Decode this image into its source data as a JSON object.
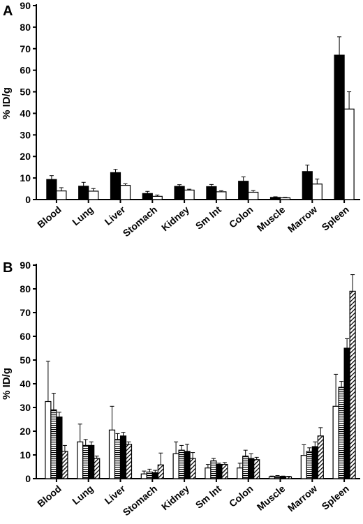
{
  "chart_data": [
    {
      "type": "bar",
      "panel_label": "A",
      "ylabel": "% ID/g",
      "ylim": [
        0,
        90
      ],
      "yticks": [
        0,
        10,
        20,
        30,
        40,
        50,
        60,
        70,
        80,
        90
      ],
      "categories": [
        "Blood",
        "Lung",
        "Liver",
        "Stomach",
        "Kidney",
        "Sm Int",
        "Colon",
        "Muscle",
        "Marrow",
        "Spleen"
      ],
      "series": [
        {
          "fill": "solid-black",
          "values": [
            9.3,
            6.2,
            12.5,
            2.8,
            6.1,
            6.0,
            8.5,
            1.0,
            13.0,
            67.0
          ],
          "errors": [
            1.8,
            1.8,
            1.5,
            1.0,
            0.8,
            1.0,
            2.0,
            0.3,
            3.0,
            8.5
          ]
        },
        {
          "fill": "white",
          "values": [
            4.0,
            3.9,
            6.6,
            1.5,
            4.4,
            3.6,
            3.4,
            0.8,
            7.2,
            42.0
          ],
          "errors": [
            1.5,
            1.2,
            0.7,
            0.6,
            0.4,
            0.5,
            0.8,
            0.2,
            2.3,
            8.0
          ]
        }
      ]
    },
    {
      "type": "bar",
      "panel_label": "B",
      "ylabel": "% ID/g",
      "ylim": [
        0,
        90
      ],
      "yticks": [
        0,
        10,
        20,
        30,
        40,
        50,
        60,
        70,
        80,
        90
      ],
      "categories": [
        "Blood",
        "Lung",
        "Liver",
        "Stomach",
        "Kidney",
        "Sm Int",
        "Colon",
        "Muscle",
        "Marrow",
        "Spleen"
      ],
      "series": [
        {
          "fill": "white",
          "values": [
            32.5,
            15.5,
            20.5,
            2.0,
            10.5,
            4.5,
            4.5,
            0.8,
            9.8,
            30.5
          ],
          "errors": [
            17.0,
            7.5,
            10.0,
            1.2,
            5.0,
            1.5,
            2.0,
            0.3,
            4.5,
            13.5
          ]
        },
        {
          "fill": "horizontal-stripes",
          "values": [
            29.0,
            14.0,
            16.5,
            2.8,
            12.0,
            7.5,
            9.5,
            1.0,
            11.5,
            38.5
          ],
          "errors": [
            7.0,
            2.5,
            2.5,
            1.2,
            2.0,
            1.0,
            2.5,
            0.3,
            1.5,
            2.5
          ]
        },
        {
          "fill": "solid-black",
          "values": [
            26.0,
            14.0,
            18.0,
            2.5,
            11.5,
            6.0,
            8.5,
            0.9,
            13.5,
            55.0
          ],
          "errors": [
            2.0,
            1.5,
            1.5,
            1.0,
            3.0,
            0.5,
            2.0,
            0.2,
            2.0,
            4.0
          ]
        },
        {
          "fill": "diagonal-stripes",
          "values": [
            11.5,
            8.5,
            14.5,
            5.8,
            8.5,
            6.0,
            8.0,
            0.8,
            18.0,
            79.0
          ],
          "errors": [
            2.5,
            1.0,
            1.0,
            5.0,
            2.5,
            0.8,
            1.0,
            0.2,
            3.5,
            7.0
          ]
        }
      ]
    }
  ]
}
